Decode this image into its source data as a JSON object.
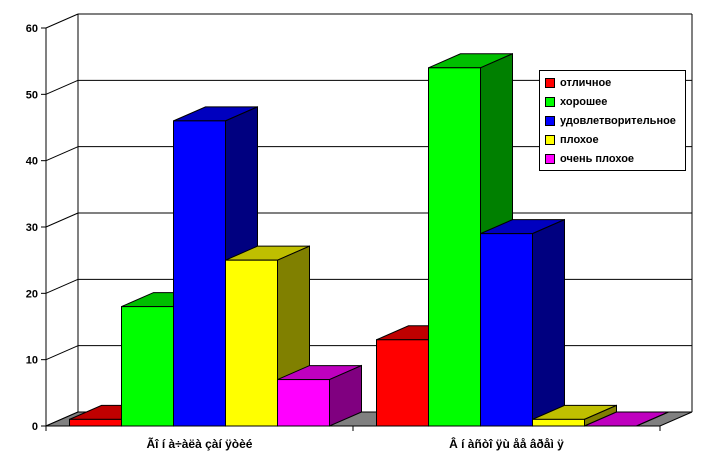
{
  "chart_data": {
    "type": "bar",
    "style": "3d-clustered",
    "categories": [
      "Ãî í à÷àëà çàí ÿòèé",
      "Â í àñòî ÿù åå âðåì ÿ"
    ],
    "series": [
      {
        "name": "отличное",
        "color": "#ff0000",
        "values": [
          1,
          13
        ]
      },
      {
        "name": "хорошее",
        "color": "#00ff00",
        "values": [
          18,
          54
        ]
      },
      {
        "name": "удовлетворительное",
        "color": "#0000ff",
        "values": [
          46,
          29
        ]
      },
      {
        "name": "плохое",
        "color": "#ffff00",
        "values": [
          25,
          1
        ]
      },
      {
        "name": "очень плохое",
        "color": "#ff00ff",
        "values": [
          7,
          0
        ]
      }
    ],
    "y_ticks": [
      "0",
      "10",
      "20",
      "30",
      "40",
      "50",
      "60"
    ],
    "ylim": [
      0,
      60
    ],
    "grid": true,
    "legend_position": "right"
  }
}
